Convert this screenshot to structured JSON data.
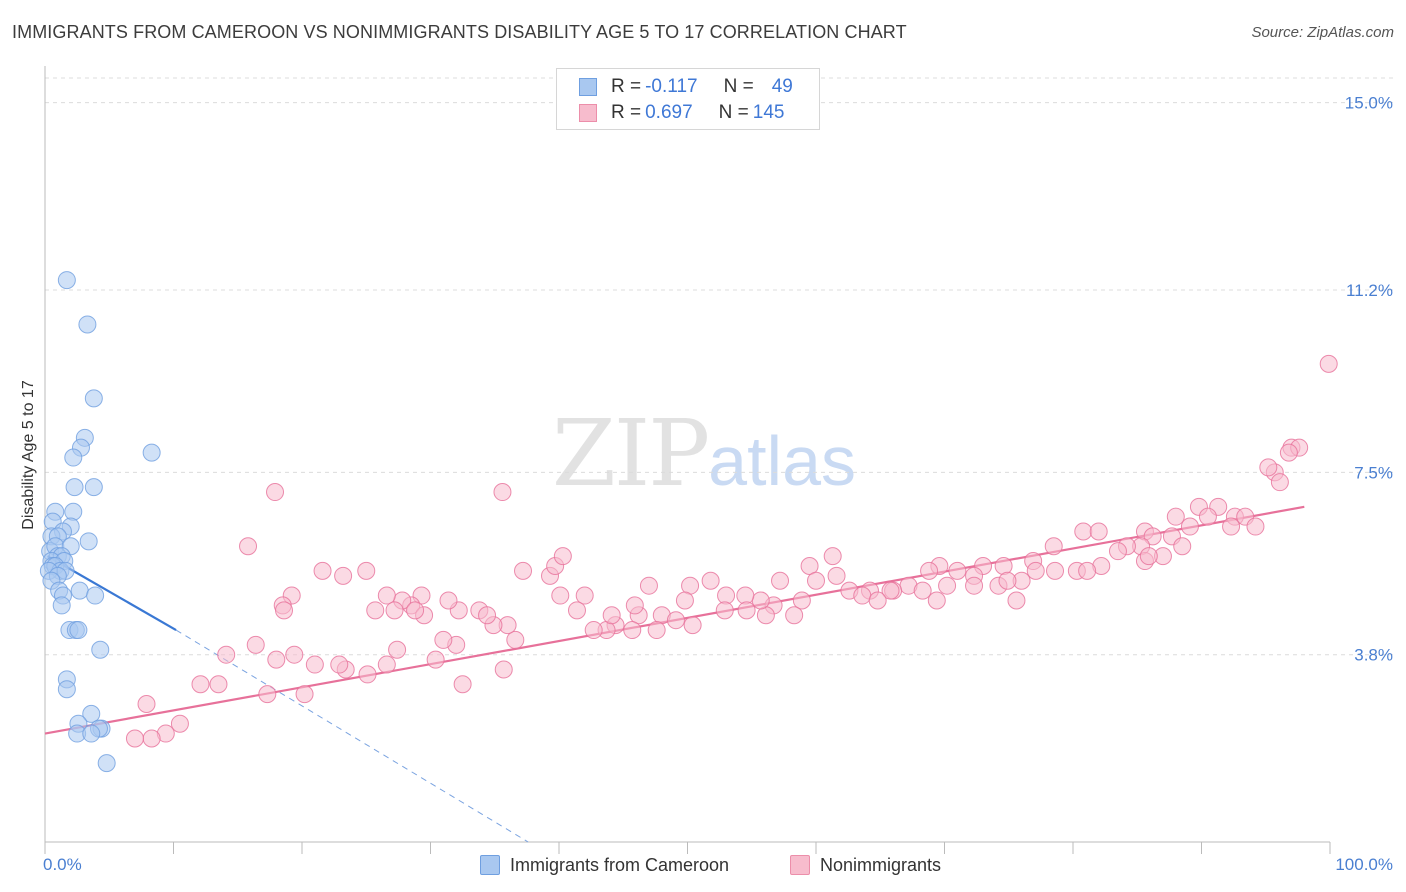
{
  "title": "IMMIGRANTS FROM CAMEROON VS NONIMMIGRANTS DISABILITY AGE 5 TO 17 CORRELATION CHART",
  "source": "Source: ZipAtlas.com",
  "watermark": {
    "zip": "ZIP",
    "atlas": "atlas"
  },
  "legend": {
    "rows": [
      {
        "r_label": "R = ",
        "r_value": "-0.117",
        "n_label": "N = ",
        "n_value": "49",
        "color": "#a9c8f0",
        "border": "#6f9fe0"
      },
      {
        "r_label": "R = ",
        "r_value": "0.697",
        "n_label": "N = ",
        "n_value": "145",
        "color": "#f7bccd",
        "border": "#ec8eaa"
      }
    ]
  },
  "bottom_legend": [
    {
      "label": "Immigrants from Cameroon",
      "color": "#a9c8f0",
      "border": "#6f9fe0"
    },
    {
      "label": "Nonimmigrants",
      "color": "#f7bccd",
      "border": "#ec8eaa"
    }
  ],
  "chart_data": {
    "type": "scatter",
    "title": "IMMIGRANTS FROM CAMEROON VS NONIMMIGRANTS DISABILITY AGE 5 TO 17 CORRELATION CHART",
    "xlabel": "",
    "ylabel": "Disability Age 5 to 17",
    "xlim": [
      0,
      100
    ],
    "ylim": [
      0,
      15.5
    ],
    "x_ticks": [
      "0.0%",
      "100.0%"
    ],
    "y_ticks": [
      {
        "value": 3.8,
        "label": "3.8%"
      },
      {
        "value": 7.5,
        "label": "7.5%"
      },
      {
        "value": 11.2,
        "label": "11.2%"
      },
      {
        "value": 15.0,
        "label": "15.0%"
      }
    ],
    "grid": "horizontal dashed",
    "legend_placement": "top-center",
    "series": [
      {
        "name": "Immigrants from Cameroon",
        "color": "#6f9fe0",
        "fill": "#a9c8f0",
        "trend": {
          "x": [
            0.2,
            10.2
          ],
          "y": [
            5.8,
            4.3
          ],
          "extended_dashed_to": [
            37.6,
            0.0
          ]
        },
        "points": [
          [
            1.7,
            11.4
          ],
          [
            3.3,
            10.5
          ],
          [
            3.8,
            9.0
          ],
          [
            8.3,
            7.9
          ],
          [
            3.1,
            8.2
          ],
          [
            2.8,
            8.0
          ],
          [
            2.2,
            7.8
          ],
          [
            2.3,
            7.2
          ],
          [
            3.8,
            7.2
          ],
          [
            2.2,
            6.7
          ],
          [
            0.8,
            6.7
          ],
          [
            0.6,
            6.5
          ],
          [
            2.0,
            6.4
          ],
          [
            1.4,
            6.3
          ],
          [
            0.5,
            6.2
          ],
          [
            1.0,
            6.2
          ],
          [
            3.4,
            6.1
          ],
          [
            0.4,
            5.9
          ],
          [
            0.8,
            6.0
          ],
          [
            2.0,
            6.0
          ],
          [
            1.0,
            5.8
          ],
          [
            1.3,
            5.8
          ],
          [
            0.5,
            5.7
          ],
          [
            1.5,
            5.7
          ],
          [
            0.6,
            5.6
          ],
          [
            0.8,
            5.6
          ],
          [
            1.2,
            5.5
          ],
          [
            0.3,
            5.5
          ],
          [
            1.6,
            5.5
          ],
          [
            1.0,
            5.4
          ],
          [
            0.5,
            5.3
          ],
          [
            1.1,
            5.1
          ],
          [
            2.7,
            5.1
          ],
          [
            3.9,
            5.0
          ],
          [
            1.4,
            5.0
          ],
          [
            1.3,
            4.8
          ],
          [
            1.9,
            4.3
          ],
          [
            2.4,
            4.3
          ],
          [
            2.6,
            4.3
          ],
          [
            4.3,
            3.9
          ],
          [
            1.7,
            3.3
          ],
          [
            1.7,
            3.1
          ],
          [
            3.6,
            2.6
          ],
          [
            2.6,
            2.4
          ],
          [
            4.4,
            2.3
          ],
          [
            4.2,
            2.3
          ],
          [
            2.5,
            2.2
          ],
          [
            3.6,
            2.2
          ],
          [
            4.8,
            1.6
          ]
        ]
      },
      {
        "name": "Nonimmigrants",
        "color": "#e7719a",
        "fill": "#f7bccd",
        "trend": {
          "x": [
            0,
            98
          ],
          "y": [
            2.2,
            6.8
          ]
        },
        "points": [
          [
            99.9,
            9.7
          ],
          [
            97.0,
            8.0
          ],
          [
            97.6,
            8.0
          ],
          [
            95.7,
            7.5
          ],
          [
            96.1,
            7.3
          ],
          [
            95.2,
            7.6
          ],
          [
            96.8,
            7.9
          ],
          [
            88.0,
            6.6
          ],
          [
            89.8,
            6.8
          ],
          [
            92.6,
            6.6
          ],
          [
            91.3,
            6.8
          ],
          [
            93.4,
            6.6
          ],
          [
            92.3,
            6.4
          ],
          [
            94.2,
            6.4
          ],
          [
            89.1,
            6.4
          ],
          [
            90.5,
            6.6
          ],
          [
            85.6,
            6.3
          ],
          [
            87.7,
            6.2
          ],
          [
            86.2,
            6.2
          ],
          [
            85.3,
            6.0
          ],
          [
            84.2,
            6.0
          ],
          [
            83.5,
            5.9
          ],
          [
            85.6,
            5.7
          ],
          [
            87.0,
            5.8
          ],
          [
            85.9,
            5.8
          ],
          [
            88.5,
            6.0
          ],
          [
            82.2,
            5.6
          ],
          [
            80.8,
            6.3
          ],
          [
            82.0,
            6.3
          ],
          [
            78.5,
            6.0
          ],
          [
            76.9,
            5.7
          ],
          [
            77.1,
            5.5
          ],
          [
            78.6,
            5.5
          ],
          [
            80.3,
            5.5
          ],
          [
            81.1,
            5.5
          ],
          [
            73.0,
            5.6
          ],
          [
            74.6,
            5.6
          ],
          [
            72.3,
            5.4
          ],
          [
            69.6,
            5.6
          ],
          [
            68.8,
            5.5
          ],
          [
            71.0,
            5.5
          ],
          [
            72.3,
            5.2
          ],
          [
            70.2,
            5.2
          ],
          [
            67.2,
            5.2
          ],
          [
            66.0,
            5.1
          ],
          [
            65.8,
            5.1
          ],
          [
            64.2,
            5.1
          ],
          [
            68.3,
            5.1
          ],
          [
            69.4,
            4.9
          ],
          [
            75.6,
            4.9
          ],
          [
            74.2,
            5.2
          ],
          [
            76.0,
            5.3
          ],
          [
            74.9,
            5.3
          ],
          [
            61.3,
            5.8
          ],
          [
            59.5,
            5.6
          ],
          [
            62.6,
            5.1
          ],
          [
            60.0,
            5.3
          ],
          [
            63.6,
            5.0
          ],
          [
            64.8,
            4.9
          ],
          [
            61.6,
            5.4
          ],
          [
            57.2,
            5.3
          ],
          [
            58.9,
            4.9
          ],
          [
            58.3,
            4.6
          ],
          [
            56.7,
            4.8
          ],
          [
            56.1,
            4.6
          ],
          [
            55.7,
            4.9
          ],
          [
            54.5,
            5.0
          ],
          [
            53.0,
            5.0
          ],
          [
            52.9,
            4.7
          ],
          [
            54.6,
            4.7
          ],
          [
            51.8,
            5.3
          ],
          [
            50.2,
            5.2
          ],
          [
            49.8,
            4.9
          ],
          [
            48.0,
            4.6
          ],
          [
            49.1,
            4.5
          ],
          [
            50.4,
            4.4
          ],
          [
            47.6,
            4.3
          ],
          [
            46.2,
            4.6
          ],
          [
            45.7,
            4.3
          ],
          [
            44.4,
            4.4
          ],
          [
            43.7,
            4.3
          ],
          [
            42.7,
            4.3
          ],
          [
            45.9,
            4.8
          ],
          [
            47.0,
            5.2
          ],
          [
            42.0,
            5.0
          ],
          [
            44.1,
            4.6
          ],
          [
            41.4,
            4.7
          ],
          [
            40.1,
            5.0
          ],
          [
            39.3,
            5.4
          ],
          [
            39.7,
            5.6
          ],
          [
            40.3,
            5.8
          ],
          [
            37.2,
            5.5
          ],
          [
            36.6,
            4.1
          ],
          [
            36.0,
            4.4
          ],
          [
            34.9,
            4.4
          ],
          [
            33.8,
            4.7
          ],
          [
            34.4,
            4.6
          ],
          [
            32.2,
            4.7
          ],
          [
            31.4,
            4.9
          ],
          [
            29.3,
            5.0
          ],
          [
            28.5,
            4.8
          ],
          [
            27.8,
            4.9
          ],
          [
            26.6,
            5.0
          ],
          [
            27.2,
            4.7
          ],
          [
            25.7,
            4.7
          ],
          [
            23.2,
            5.4
          ],
          [
            25.0,
            5.5
          ],
          [
            21.6,
            5.5
          ],
          [
            19.2,
            5.0
          ],
          [
            18.5,
            4.8
          ],
          [
            18.6,
            4.7
          ],
          [
            15.8,
            6.0
          ],
          [
            17.9,
            7.1
          ],
          [
            35.6,
            7.1
          ],
          [
            35.7,
            3.5
          ],
          [
            32.5,
            3.2
          ],
          [
            32.0,
            4.0
          ],
          [
            31.0,
            4.1
          ],
          [
            30.4,
            3.7
          ],
          [
            29.5,
            4.6
          ],
          [
            28.8,
            4.7
          ],
          [
            27.4,
            3.9
          ],
          [
            26.6,
            3.6
          ],
          [
            25.1,
            3.4
          ],
          [
            23.4,
            3.5
          ],
          [
            22.9,
            3.6
          ],
          [
            21.0,
            3.6
          ],
          [
            20.2,
            3.0
          ],
          [
            19.4,
            3.8
          ],
          [
            18.0,
            3.7
          ],
          [
            17.3,
            3.0
          ],
          [
            16.4,
            4.0
          ],
          [
            14.1,
            3.8
          ],
          [
            13.5,
            3.2
          ],
          [
            12.1,
            3.2
          ],
          [
            10.5,
            2.4
          ],
          [
            9.4,
            2.2
          ],
          [
            8.3,
            2.1
          ],
          [
            7.0,
            2.1
          ],
          [
            7.9,
            2.8
          ]
        ]
      }
    ]
  }
}
